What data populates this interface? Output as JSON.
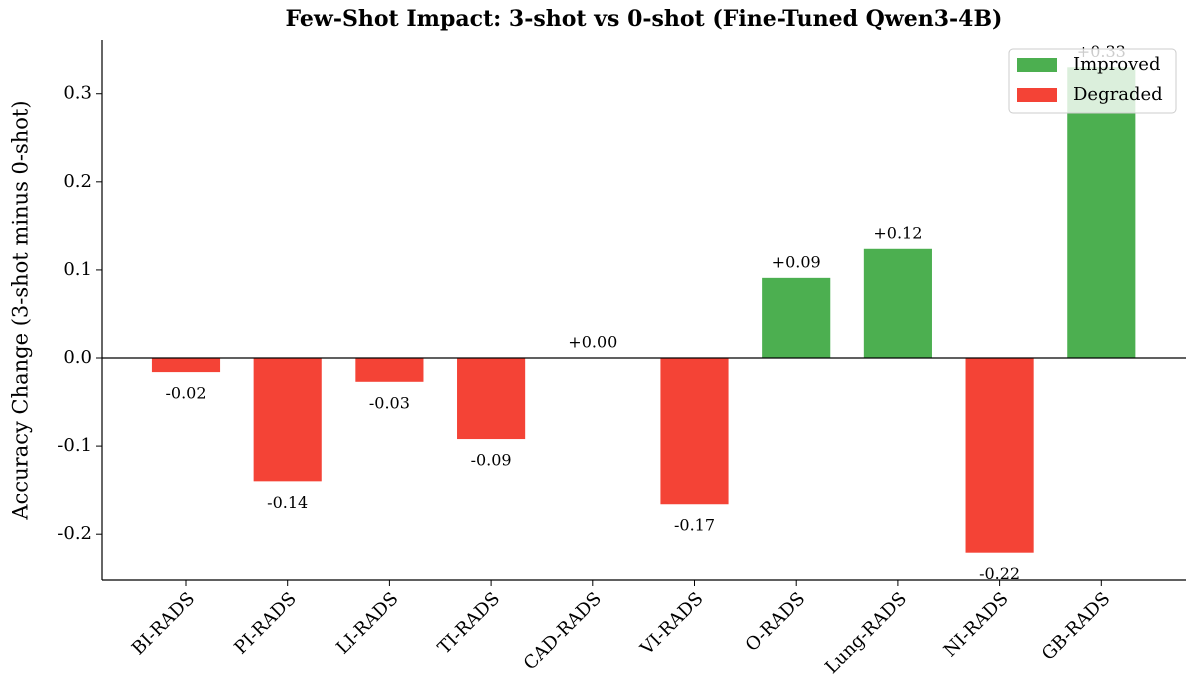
{
  "chart_data": {
    "type": "bar",
    "title": "Few-Shot Impact: 3-shot vs 0-shot (Fine-Tuned Qwen3-4B)",
    "y_label": "Accuracy Change (3-shot minus 0-shot)",
    "categories": [
      "BI-RADS",
      "PI-RADS",
      "LI-RADS",
      "TI-RADS",
      "CAD-RADS",
      "VI-RADS",
      "O-RADS",
      "Lung-RADS",
      "NI-RADS",
      "GB-RADS"
    ],
    "values": [
      -0.016,
      -0.14,
      -0.027,
      -0.092,
      0.0,
      -0.166,
      0.091,
      0.124,
      -0.221,
      0.33
    ],
    "value_labels": [
      "-0.02",
      "-0.14",
      "-0.03",
      "-0.09",
      "+0.00",
      "-0.17",
      "+0.09",
      "+0.12",
      "-0.22",
      "+0.33"
    ],
    "colors": [
      "#f44336",
      "#f44336",
      "#f44336",
      "#f44336",
      "#4caf50",
      "#f44336",
      "#4caf50",
      "#4caf50",
      "#f44336",
      "#4caf50"
    ],
    "legend": [
      {
        "name": "Improved",
        "color": "#4caf50"
      },
      {
        "name": "Degraded",
        "color": "#f44336"
      }
    ],
    "legend_position": "upper right",
    "ylim": [
      -0.252,
      0.361
    ],
    "yticks": [
      -0.2,
      -0.1,
      {
        "value": 0,
        "label": "0.0"
      },
      0.1,
      0.2,
      0.3
    ]
  }
}
